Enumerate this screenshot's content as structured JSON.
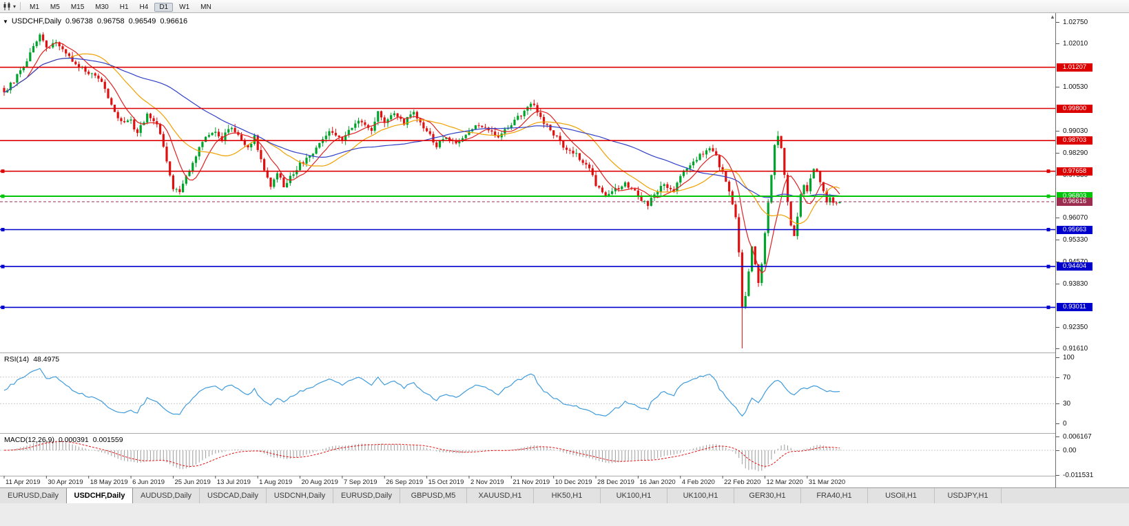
{
  "toolbar": {
    "timeframes": [
      "M1",
      "M5",
      "M15",
      "M30",
      "H1",
      "H4",
      "D1",
      "W1",
      "MN"
    ],
    "active": "D1"
  },
  "main_chart": {
    "symbol_title": "USDCHF,Daily",
    "open": "0.96738",
    "high": "0.96758",
    "low": "0.96549",
    "close": "0.96616"
  },
  "rsi_panel": {
    "label": "RSI(14)",
    "value": "48.4975"
  },
  "macd_panel": {
    "label": "MACD(12,26,9)",
    "value_main": "0.000391",
    "value_signal": "0.001559"
  },
  "tabs": {
    "items": [
      {
        "label": "EURUSD,Daily",
        "active": false
      },
      {
        "label": "USDCHF,Daily",
        "active": true
      },
      {
        "label": "AUDUSD,Daily",
        "active": false
      },
      {
        "label": "USDCAD,Daily",
        "active": false
      },
      {
        "label": "USDCNH,Daily",
        "active": false
      },
      {
        "label": "EURUSD,Daily",
        "active": false
      },
      {
        "label": "GBPUSD,M5",
        "active": false
      },
      {
        "label": "XAUUSD,H1",
        "active": false
      },
      {
        "label": "HK50,H1",
        "active": false
      },
      {
        "label": "UK100,H1",
        "active": false
      },
      {
        "label": "UK100,H1",
        "active": false
      },
      {
        "label": "GER30,H1",
        "active": false
      },
      {
        "label": "FRA40,H1",
        "active": false
      },
      {
        "label": "USOil,H1",
        "active": false
      },
      {
        "label": "USDJPY,H1",
        "active": false
      }
    ]
  },
  "chart_data": {
    "type": "candlestick",
    "symbol": "USDCHF",
    "timeframe": "Daily",
    "title": "USDCHF,Daily",
    "ohlc_display": {
      "open": 0.96738,
      "high": 0.96758,
      "low": 0.96549,
      "close": 0.96616
    },
    "bull_color": "#00a42a",
    "bear_color": "#e01010",
    "y_axis": {
      "min": 0.9161,
      "max": 1.0275,
      "plain_ticks": [
        1.0275,
        1.0201,
        1.0053,
        0.9903,
        0.9829,
        0.9753,
        0.9607,
        0.9533,
        0.9457,
        0.9383,
        0.9235,
        0.9161
      ]
    },
    "x_axis": {
      "labels": [
        "11 Apr 2019",
        "30 Apr 2019",
        "18 May 2019",
        "6 Jun 2019",
        "25 Jun 2019",
        "13 Jul 2019",
        "1 Aug 2019",
        "20 Aug 2019",
        "7 Sep 2019",
        "26 Sep 2019",
        "15 Oct 2019",
        "2 Nov 2019",
        "21 Nov 2019",
        "10 Dec 2019",
        "28 Dec 2019",
        "16 Jan 2020",
        "4 Feb 2020",
        "22 Feb 2020",
        "12 Mar 2020",
        "31 Mar 2020"
      ],
      "candles_per_label": 13
    },
    "candles_count": 258,
    "close_keypoints": [
      [
        0,
        1.0035
      ],
      [
        3,
        1.0075
      ],
      [
        6,
        1.012
      ],
      [
        9,
        1.0195
      ],
      [
        11,
        1.0225
      ],
      [
        13,
        1.019
      ],
      [
        16,
        1.0205
      ],
      [
        19,
        1.017
      ],
      [
        22,
        1.0125
      ],
      [
        26,
        1.0105
      ],
      [
        29,
        1.0085
      ],
      [
        32,
        1.002
      ],
      [
        35,
        0.9945
      ],
      [
        39,
        0.9935
      ],
      [
        41,
        0.9895
      ],
      [
        44,
        0.9955
      ],
      [
        47,
        0.993
      ],
      [
        50,
        0.98
      ],
      [
        52,
        0.971
      ],
      [
        54,
        0.9698
      ],
      [
        57,
        0.977
      ],
      [
        60,
        0.985
      ],
      [
        63,
        0.9895
      ],
      [
        65,
        0.9905
      ],
      [
        67,
        0.9875
      ],
      [
        69,
        0.9915
      ],
      [
        72,
        0.9895
      ],
      [
        75,
        0.9845
      ],
      [
        77,
        0.9885
      ],
      [
        79,
        0.98
      ],
      [
        82,
        0.972
      ],
      [
        84,
        0.9762
      ],
      [
        86,
        0.9712
      ],
      [
        88,
        0.9745
      ],
      [
        91,
        0.979
      ],
      [
        94,
        0.9812
      ],
      [
        97,
        0.9868
      ],
      [
        100,
        0.9898
      ],
      [
        104,
        0.9878
      ],
      [
        107,
        0.9918
      ],
      [
        110,
        0.9938
      ],
      [
        113,
        0.9908
      ],
      [
        115,
        0.9965
      ],
      [
        117,
        0.9932
      ],
      [
        120,
        0.9958
      ],
      [
        123,
        0.9932
      ],
      [
        126,
        0.9968
      ],
      [
        130,
        0.9902
      ],
      [
        133,
        0.9852
      ],
      [
        136,
        0.9882
      ],
      [
        139,
        0.9862
      ],
      [
        143,
        0.99
      ],
      [
        146,
        0.9928
      ],
      [
        149,
        0.9902
      ],
      [
        152,
        0.9882
      ],
      [
        156,
        0.9928
      ],
      [
        159,
        0.9958
      ],
      [
        162,
        1.0002
      ],
      [
        165,
        0.9948
      ],
      [
        169,
        0.9892
      ],
      [
        172,
        0.9852
      ],
      [
        175,
        0.9832
      ],
      [
        178,
        0.9798
      ],
      [
        180,
        0.9772
      ],
      [
        182,
        0.9722
      ],
      [
        185,
        0.9682
      ],
      [
        188,
        0.9702
      ],
      [
        191,
        0.9722
      ],
      [
        195,
        0.9682
      ],
      [
        198,
        0.9652
      ],
      [
        200,
        0.9692
      ],
      [
        203,
        0.9722
      ],
      [
        206,
        0.9702
      ],
      [
        208,
        0.9752
      ],
      [
        211,
        0.9782
      ],
      [
        214,
        0.9822
      ],
      [
        217,
        0.9845
      ],
      [
        219,
        0.9812
      ],
      [
        221,
        0.9762
      ],
      [
        223,
        0.9692
      ],
      [
        225,
        0.9602
      ],
      [
        226,
        0.9492
      ],
      [
        227,
        0.9302
      ],
      [
        228,
        0.9338
      ],
      [
        229,
        0.9425
      ],
      [
        230,
        0.9502
      ],
      [
        231,
        0.9452
      ],
      [
        232,
        0.9385
      ],
      [
        233,
        0.9452
      ],
      [
        234,
        0.9552
      ],
      [
        235,
        0.9652
      ],
      [
        236,
        0.9752
      ],
      [
        237,
        0.9852
      ],
      [
        238,
        0.9882
      ],
      [
        239,
        0.9842
      ],
      [
        240,
        0.9752
      ],
      [
        241,
        0.9655
      ],
      [
        242,
        0.9585
      ],
      [
        243,
        0.9552
      ],
      [
        244,
        0.9612
      ],
      [
        245,
        0.9682
      ],
      [
        246,
        0.9722
      ],
      [
        247,
        0.9702
      ],
      [
        248,
        0.9742
      ],
      [
        249,
        0.9772
      ],
      [
        250,
        0.9758
      ],
      [
        251,
        0.9722
      ],
      [
        252,
        0.9692
      ],
      [
        253,
        0.9662
      ],
      [
        254,
        0.9682
      ],
      [
        255,
        0.9652
      ],
      [
        257,
        0.96616
      ]
    ],
    "special_wicks": [
      {
        "index": 11,
        "high": 1.0238
      },
      {
        "index": 227,
        "low": 0.9161
      },
      {
        "index": 238,
        "high": 0.9903
      }
    ],
    "moving_averages": [
      {
        "period": 8,
        "color": "#e02020"
      },
      {
        "period": 21,
        "color": "#f0a000"
      },
      {
        "period": 50,
        "color": "#3040c8"
      }
    ],
    "hlines": [
      {
        "price": 1.01207,
        "label": "1.01207",
        "color": "#dd0000",
        "width": 1.6
      },
      {
        "price": 0.998,
        "label": "0.99800",
        "color": "#dd0000",
        "width": 1.6
      },
      {
        "price": 0.98703,
        "label": "0.98703",
        "color": "#dd0000",
        "width": 1.6
      },
      {
        "price": 0.97658,
        "label": "0.97658",
        "color": "#dd0000",
        "width": 1.6,
        "handles": true
      },
      {
        "price": 0.96803,
        "label": "0.96803",
        "color": "#00c40a",
        "width": 2,
        "handles": true
      },
      {
        "price": 0.95663,
        "label": "0.95663",
        "color": "#0000cc",
        "width": 1.6,
        "handles": true
      },
      {
        "price": 0.94404,
        "label": "0.94404",
        "color": "#0000cc",
        "width": 1.6,
        "handles": true
      },
      {
        "price": 0.93011,
        "label": "0.93011",
        "color": "#0000cc",
        "width": 1.6,
        "handles": true
      }
    ],
    "current_price_line": {
      "price": 0.96616,
      "label": "0.96616",
      "color": "#9a2d50"
    },
    "rsi": {
      "period": 14,
      "current": 48.4975,
      "color": "#3f9bdc",
      "levels": [
        70,
        30
      ],
      "scale_ticks": [
        {
          "v": 100,
          "label": "100"
        },
        {
          "v": 70,
          "label": "70"
        },
        {
          "v": 30,
          "label": "30"
        },
        {
          "v": 0,
          "label": "0"
        }
      ]
    },
    "macd": {
      "fast": 12,
      "slow": 26,
      "signal_period": 9,
      "main_value": 0.000391,
      "signal_value": 0.001559,
      "histogram_color": "#9b9b9b",
      "signal_color": "#e01010",
      "scale_ticks": [
        {
          "v": 0.006167,
          "label": "0.006167"
        },
        {
          "v": 0,
          "label": "0.00"
        },
        {
          "v": -0.011531,
          "label": "-0.011531"
        }
      ]
    }
  }
}
